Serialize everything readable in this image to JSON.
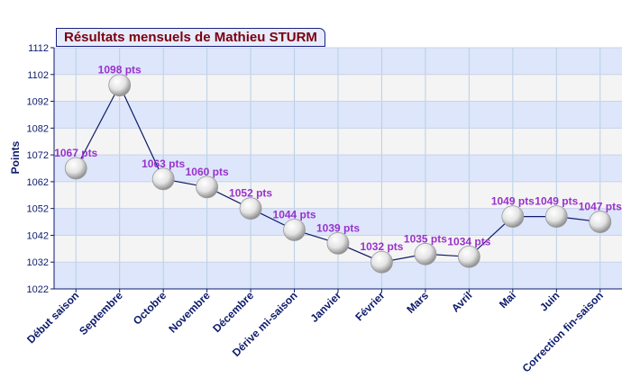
{
  "chart_data": {
    "type": "line",
    "title": "Résultats mensuels de Mathieu STURM",
    "ylabel": "Points",
    "xlabel": "",
    "categories": [
      "Début saison",
      "Septembre",
      "Octobre",
      "Novembre",
      "Décembre",
      "Dérive mi-saison",
      "Janvier",
      "Février",
      "Mars",
      "Avril",
      "Mai",
      "Juin",
      "Correction fin-saison"
    ],
    "values": [
      1067,
      1098,
      1063,
      1060,
      1052,
      1044,
      1039,
      1032,
      1035,
      1034,
      1049,
      1049,
      1047
    ],
    "point_labels": [
      "1067 pts",
      "1098 pts",
      "1063 pts",
      "1060 pts",
      "1052 pts",
      "1044 pts",
      "1039 pts",
      "1032 pts",
      "1035 pts",
      "1034 pts",
      "1049 pts",
      "1049 pts",
      "1047 pts"
    ],
    "yticks": [
      1022,
      1032,
      1042,
      1052,
      1062,
      1072,
      1082,
      1092,
      1102,
      1112
    ],
    "ylim": [
      1022,
      1112
    ],
    "grid": true,
    "colors": {
      "line": "#0d1b6b",
      "label": "#9932cc",
      "band": "#dde6fb",
      "axis_text": "#0d1b6b"
    }
  }
}
